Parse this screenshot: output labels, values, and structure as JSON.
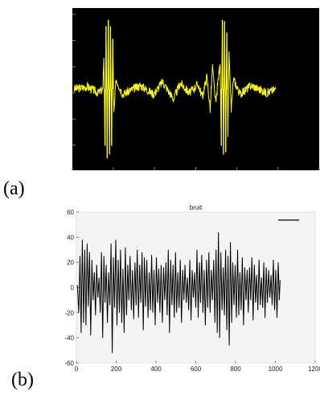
{
  "panels": [
    {
      "label": "(a)"
    },
    {
      "label": "(b)"
    }
  ],
  "colors": {
    "plot_a_background": "#000000",
    "plot_a_trace": "#ffff00",
    "plot_b_background": "#f4f4f4",
    "plot_b_trace": "#000000",
    "tick_color": "#7f7f7f"
  },
  "chart_data": [
    {
      "type": "line",
      "title": "",
      "xlabel": "",
      "ylabel": "",
      "tick_labels_shown": false,
      "xlim": [
        0,
        1100
      ],
      "ylim": [
        -60,
        60
      ],
      "series": [
        {
          "values": [
            [
              0,
              0
            ],
            [
              60,
              2
            ],
            [
              110,
              -3
            ],
            [
              130,
              0
            ],
            [
              135,
              25
            ],
            [
              140,
              -45
            ],
            [
              145,
              50
            ],
            [
              150,
              -55
            ],
            [
              155,
              55
            ],
            [
              160,
              -52
            ],
            [
              165,
              50
            ],
            [
              170,
              -45
            ],
            [
              175,
              40
            ],
            [
              180,
              -20
            ],
            [
              190,
              8
            ],
            [
              220,
              -4
            ],
            [
              300,
              3
            ],
            [
              360,
              -4
            ],
            [
              400,
              6
            ],
            [
              450,
              -8
            ],
            [
              480,
              5
            ],
            [
              520,
              -3
            ],
            [
              560,
              4
            ],
            [
              580,
              -6
            ],
            [
              600,
              10
            ],
            [
              615,
              -16
            ],
            [
              625,
              18
            ],
            [
              640,
              -12
            ],
            [
              650,
              6
            ],
            [
              660,
              20
            ],
            [
              665,
              -45
            ],
            [
              670,
              55
            ],
            [
              675,
              -52
            ],
            [
              680,
              54
            ],
            [
              685,
              -50
            ],
            [
              690,
              45
            ],
            [
              695,
              -38
            ],
            [
              700,
              30
            ],
            [
              710,
              -16
            ],
            [
              720,
              8
            ],
            [
              750,
              -4
            ],
            [
              800,
              3
            ],
            [
              870,
              -3
            ],
            [
              910,
              0
            ]
          ]
        }
      ]
    },
    {
      "type": "line",
      "title": "bruit",
      "xlabel": "",
      "ylabel": "",
      "xlim": [
        0,
        1200
      ],
      "ylim": [
        -60,
        60
      ],
      "x_tick_labels": [
        "0",
        "200",
        "400",
        "600",
        "800",
        "1000",
        "1200"
      ],
      "y_tick_labels": [
        "-60",
        "-40",
        "-20",
        "0",
        "20",
        "40",
        "60"
      ],
      "legend": {
        "placement": "top-right"
      },
      "series": [
        {
          "name": "",
          "values": [
            [
              5,
              2
            ],
            [
              12,
              -20
            ],
            [
              18,
              25
            ],
            [
              24,
              -36
            ],
            [
              30,
              38
            ],
            [
              36,
              -28
            ],
            [
              42,
              30
            ],
            [
              48,
              -30
            ],
            [
              54,
              35
            ],
            [
              60,
              -15
            ],
            [
              66,
              28
            ],
            [
              72,
              -38
            ],
            [
              78,
              22
            ],
            [
              84,
              -10
            ],
            [
              90,
              12
            ],
            [
              96,
              -22
            ],
            [
              102,
              18
            ],
            [
              108,
              -8
            ],
            [
              114,
              8
            ],
            [
              120,
              -20
            ],
            [
              126,
              28
            ],
            [
              132,
              -40
            ],
            [
              138,
              25
            ],
            [
              144,
              -12
            ],
            [
              150,
              18
            ],
            [
              156,
              -28
            ],
            [
              162,
              12
            ],
            [
              168,
              -14
            ],
            [
              174,
              35
            ],
            [
              180,
              -52
            ],
            [
              186,
              24
            ],
            [
              192,
              -16
            ],
            [
              198,
              38
            ],
            [
              204,
              -30
            ],
            [
              210,
              22
            ],
            [
              216,
              -20
            ],
            [
              222,
              30
            ],
            [
              228,
              -28
            ],
            [
              234,
              15
            ],
            [
              240,
              -36
            ],
            [
              246,
              32
            ],
            [
              252,
              -22
            ],
            [
              258,
              18
            ],
            [
              264,
              -10
            ],
            [
              270,
              25
            ],
            [
              276,
              -18
            ],
            [
              282,
              14
            ],
            [
              288,
              -25
            ],
            [
              294,
              20
            ],
            [
              300,
              -14
            ],
            [
              306,
              30
            ],
            [
              312,
              -24
            ],
            [
              318,
              18
            ],
            [
              324,
              -12
            ],
            [
              330,
              28
            ],
            [
              336,
              -34
            ],
            [
              342,
              24
            ],
            [
              348,
              -15
            ],
            [
              354,
              22
            ],
            [
              360,
              -24
            ],
            [
              366,
              12
            ],
            [
              372,
              -18
            ],
            [
              378,
              26
            ],
            [
              384,
              -20
            ],
            [
              390,
              14
            ],
            [
              396,
              -30
            ],
            [
              402,
              24
            ],
            [
              408,
              -12
            ],
            [
              414,
              15
            ],
            [
              420,
              -20
            ],
            [
              426,
              18
            ],
            [
              432,
              -28
            ],
            [
              438,
              16
            ],
            [
              444,
              -10
            ],
            [
              450,
              20
            ],
            [
              456,
              -22
            ],
            [
              462,
              30
            ],
            [
              468,
              -36
            ],
            [
              474,
              22
            ],
            [
              480,
              -14
            ],
            [
              486,
              18
            ],
            [
              492,
              -24
            ],
            [
              498,
              28
            ],
            [
              504,
              -20
            ],
            [
              510,
              12
            ],
            [
              516,
              -16
            ],
            [
              522,
              22
            ],
            [
              528,
              -28
            ],
            [
              534,
              14
            ],
            [
              540,
              -10
            ],
            [
              546,
              18
            ],
            [
              552,
              -12
            ],
            [
              558,
              8
            ],
            [
              564,
              -18
            ],
            [
              570,
              22
            ],
            [
              576,
              -26
            ],
            [
              582,
              14
            ],
            [
              588,
              -8
            ],
            [
              594,
              12
            ],
            [
              600,
              -16
            ],
            [
              606,
              30
            ],
            [
              612,
              -24
            ],
            [
              618,
              20
            ],
            [
              624,
              -12
            ],
            [
              630,
              26
            ],
            [
              636,
              -20
            ],
            [
              642,
              14
            ],
            [
              648,
              -30
            ],
            [
              654,
              22
            ],
            [
              660,
              -16
            ],
            [
              666,
              28
            ],
            [
              672,
              -20
            ],
            [
              678,
              14
            ],
            [
              684,
              -10
            ],
            [
              690,
              22
            ],
            [
              696,
              -28
            ],
            [
              702,
              30
            ],
            [
              708,
              -36
            ],
            [
              714,
              44
            ],
            [
              720,
              -40
            ],
            [
              726,
              28
            ],
            [
              732,
              -18
            ],
            [
              738,
              16
            ],
            [
              744,
              -22
            ],
            [
              750,
              30
            ],
            [
              756,
              -34
            ],
            [
              762,
              25
            ],
            [
              768,
              -46
            ],
            [
              774,
              36
            ],
            [
              780,
              -28
            ],
            [
              786,
              20
            ],
            [
              792,
              -14
            ],
            [
              798,
              18
            ],
            [
              804,
              -24
            ],
            [
              810,
              30
            ],
            [
              816,
              -22
            ],
            [
              822,
              12
            ],
            [
              828,
              -18
            ],
            [
              834,
              24
            ],
            [
              840,
              -30
            ],
            [
              846,
              16
            ],
            [
              852,
              -10
            ],
            [
              858,
              14
            ],
            [
              864,
              -20
            ],
            [
              870,
              16
            ],
            [
              876,
              -10
            ],
            [
              882,
              24
            ],
            [
              888,
              -26
            ],
            [
              894,
              18
            ],
            [
              900,
              -12
            ],
            [
              906,
              10
            ],
            [
              912,
              -18
            ],
            [
              918,
              22
            ],
            [
              924,
              -14
            ],
            [
              930,
              8
            ],
            [
              936,
              -16
            ],
            [
              942,
              20
            ],
            [
              948,
              -24
            ],
            [
              954,
              16
            ],
            [
              960,
              -12
            ],
            [
              966,
              14
            ],
            [
              972,
              -8
            ],
            [
              978,
              10
            ],
            [
              984,
              -14
            ],
            [
              990,
              22
            ],
            [
              996,
              -18
            ],
            [
              1002,
              14
            ],
            [
              1008,
              -24
            ],
            [
              1014,
              20
            ],
            [
              1020,
              -10
            ],
            [
              1024,
              6
            ]
          ]
        }
      ]
    }
  ]
}
